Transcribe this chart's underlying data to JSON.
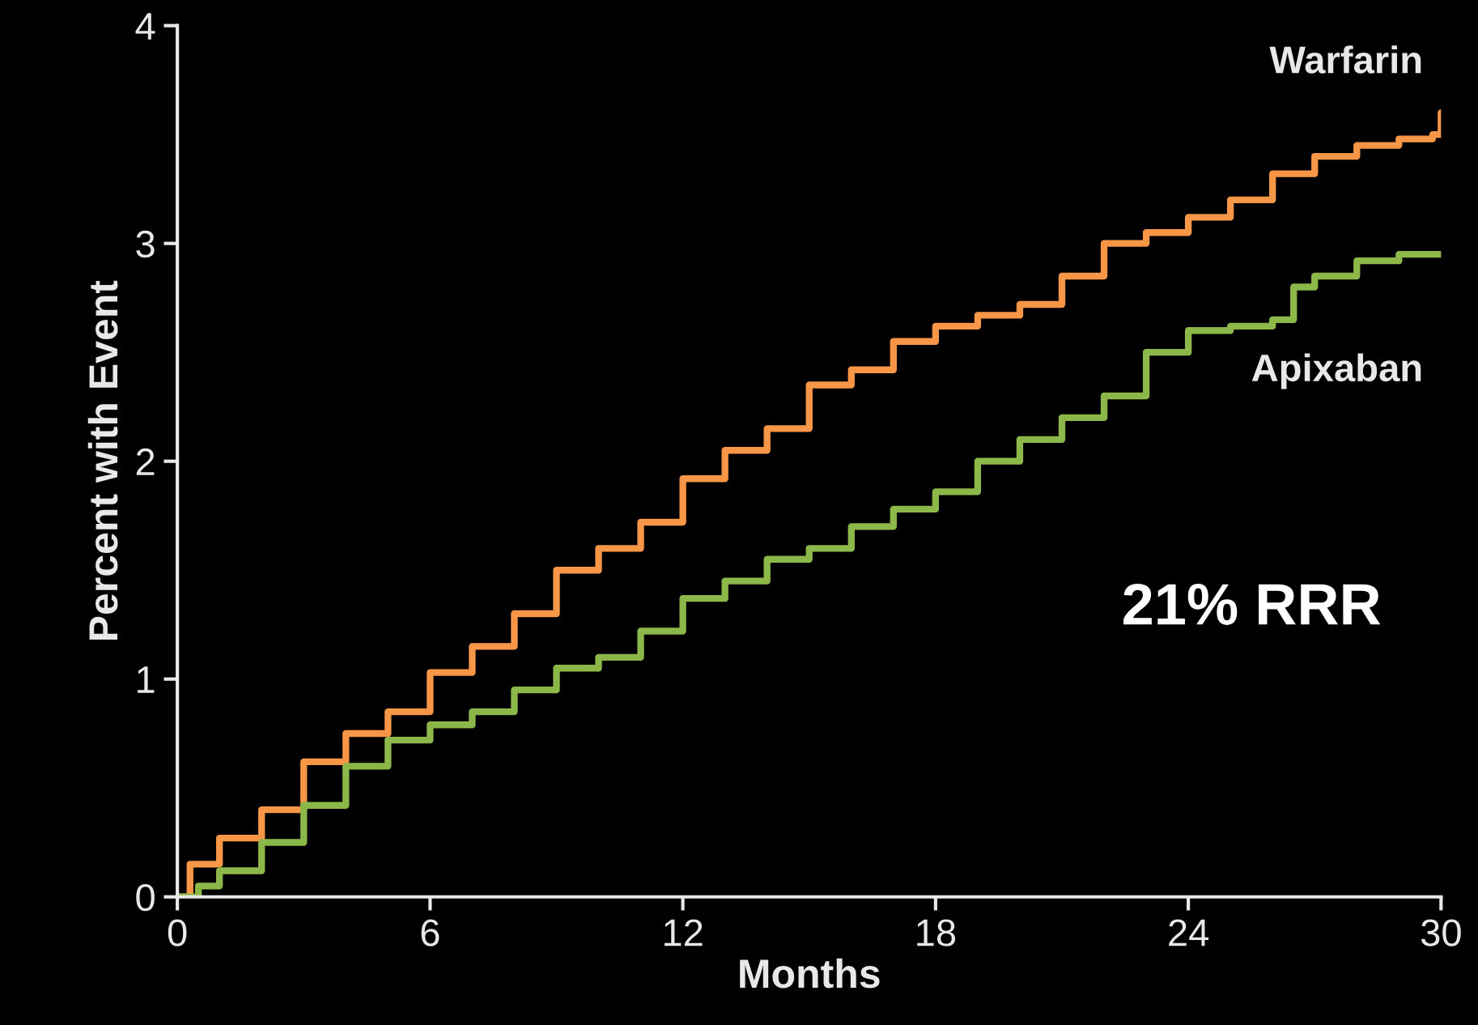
{
  "chart_data": {
    "type": "step",
    "xlabel": "Months",
    "ylabel": "Percent with Event",
    "xlim": [
      0,
      30
    ],
    "xticks": [
      0,
      6,
      12,
      18,
      24,
      30
    ],
    "ylim": [
      0,
      4
    ],
    "yticks": [
      0,
      1,
      2,
      3,
      4
    ],
    "grid": false,
    "legend": false,
    "annotations": [
      "21% RRR"
    ],
    "series": [
      {
        "name": "Warfarin",
        "color": "#f79646",
        "x": [
          0,
          0.3,
          1,
          2,
          3,
          4,
          5,
          6,
          7,
          8,
          9,
          10,
          11,
          12,
          13,
          14,
          15,
          16,
          17,
          18,
          19,
          20,
          21,
          22,
          23,
          24,
          25,
          26,
          27,
          28,
          29,
          29.8,
          30
        ],
        "values": [
          0,
          0.15,
          0.27,
          0.4,
          0.62,
          0.75,
          0.85,
          1.03,
          1.15,
          1.3,
          1.5,
          1.6,
          1.72,
          1.92,
          2.05,
          2.15,
          2.35,
          2.42,
          2.55,
          2.62,
          2.67,
          2.72,
          2.85,
          3.0,
          3.05,
          3.12,
          3.2,
          3.32,
          3.4,
          3.45,
          3.48,
          3.5,
          3.6
        ]
      },
      {
        "name": "Apixaban",
        "color": "#8cb84a",
        "x": [
          0,
          0.5,
          1,
          2,
          3,
          4,
          5,
          6,
          7,
          8,
          9,
          10,
          11,
          12,
          13,
          14,
          15,
          16,
          17,
          18,
          19,
          20,
          21,
          22,
          23,
          24,
          25,
          26,
          26.5,
          27,
          28,
          29,
          30
        ],
        "values": [
          0,
          0.05,
          0.12,
          0.25,
          0.42,
          0.6,
          0.72,
          0.79,
          0.85,
          0.95,
          1.05,
          1.1,
          1.22,
          1.37,
          1.45,
          1.55,
          1.6,
          1.7,
          1.78,
          1.86,
          2.0,
          2.1,
          2.2,
          2.3,
          2.5,
          2.6,
          2.62,
          2.65,
          2.8,
          2.85,
          2.92,
          2.95,
          2.95
        ]
      }
    ]
  }
}
